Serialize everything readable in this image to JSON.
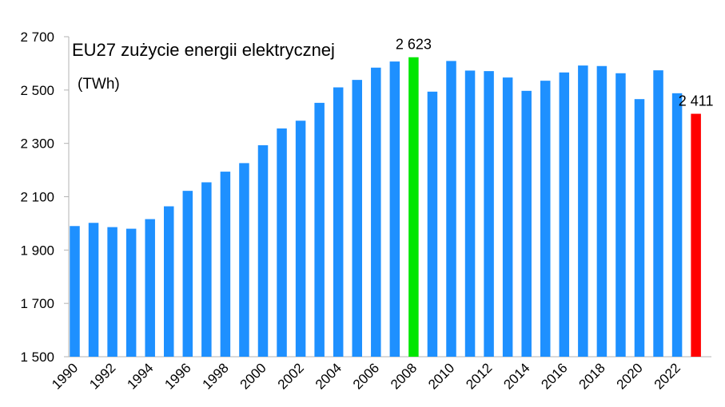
{
  "chart_data": {
    "type": "bar",
    "title": "EU27 zużycie energii elektrycznej",
    "subtitle": "(TWh)",
    "xlabel": "",
    "ylabel": "",
    "ylim": [
      1500,
      2700
    ],
    "yticks": [
      1500,
      1700,
      1900,
      2100,
      2300,
      2500,
      2700
    ],
    "ytick_labels": [
      "1 500",
      "1 700",
      "1 900",
      "2 100",
      "2 300",
      "2 500",
      "2 700"
    ],
    "grid": false,
    "categories": [
      "1990",
      "1991",
      "1992",
      "1993",
      "1994",
      "1995",
      "1996",
      "1997",
      "1998",
      "1999",
      "2000",
      "2001",
      "2002",
      "2003",
      "2004",
      "2005",
      "2006",
      "2007",
      "2008",
      "2009",
      "2010",
      "2011",
      "2012",
      "2013",
      "2014",
      "2015",
      "2016",
      "2017",
      "2018",
      "2019",
      "2020",
      "2021",
      "2022",
      "2023"
    ],
    "xtick_labels": [
      "1990",
      "",
      "1992",
      "",
      "1994",
      "",
      "1996",
      "",
      "1998",
      "",
      "2000",
      "",
      "2002",
      "",
      "2004",
      "",
      "2006",
      "",
      "2008",
      "",
      "2010",
      "",
      "2012",
      "",
      "2014",
      "",
      "2016",
      "",
      "2018",
      "",
      "2020",
      "",
      "2022",
      ""
    ],
    "values": [
      1990,
      2002,
      1986,
      1980,
      2016,
      2064,
      2122,
      2154,
      2194,
      2226,
      2293,
      2356,
      2385,
      2452,
      2510,
      2538,
      2584,
      2607,
      2623,
      2494,
      2609,
      2573,
      2571,
      2547,
      2497,
      2535,
      2566,
      2592,
      2590,
      2563,
      2466,
      2574,
      2488,
      2411
    ],
    "colors": {
      "default": "#1e90ff",
      "highlight_max": "#00e600",
      "highlight_last": "#ff0000"
    },
    "highlight": {
      "2008": "highlight_max",
      "2023": "highlight_last"
    },
    "data_labels": [
      {
        "category": "2008",
        "text": "2 623"
      },
      {
        "category": "2023",
        "text": "2 411"
      }
    ]
  }
}
